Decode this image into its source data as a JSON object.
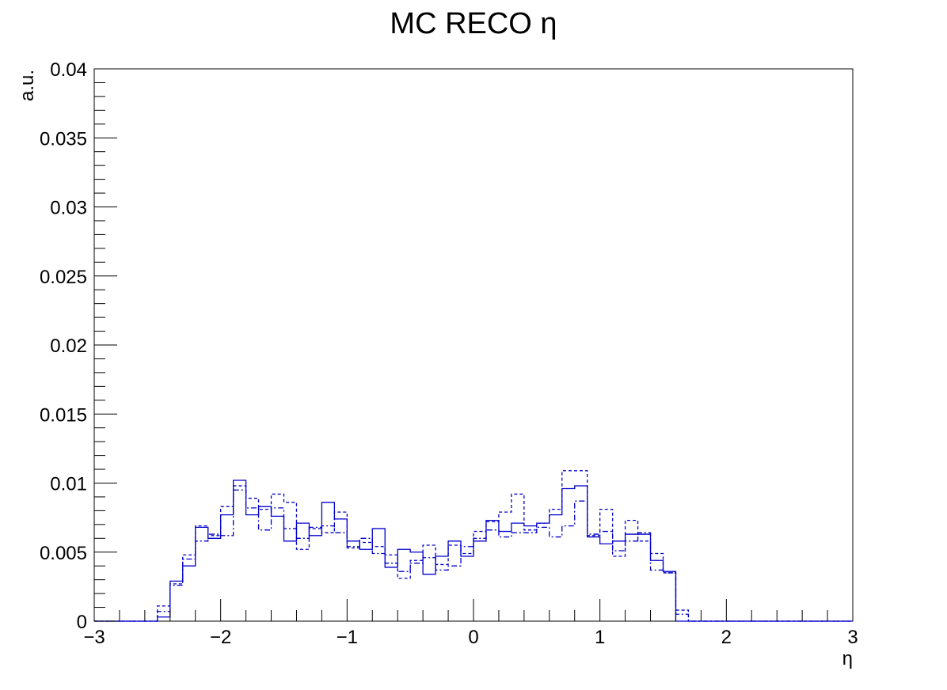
{
  "chart_data": {
    "type": "line",
    "title": "MC RECO η",
    "xlabel": "η",
    "ylabel": "a.u.",
    "xlim": [
      -3,
      3
    ],
    "ylim": [
      0,
      0.04
    ],
    "grid": false,
    "x_ticks": [
      -3,
      -2,
      -1,
      0,
      1,
      2,
      3
    ],
    "x_tick_labels": [
      "−3",
      "−2",
      "−1",
      "0",
      "1",
      "2",
      "3"
    ],
    "y_ticks": [
      0,
      0.005,
      0.01,
      0.015,
      0.02,
      0.025,
      0.03,
      0.035,
      0.04
    ],
    "y_tick_labels": [
      "0",
      "0.005",
      "0.01",
      "0.015",
      "0.02",
      "0.025",
      "0.03",
      "0.035",
      "0.04"
    ],
    "bin_edges": [
      -3.0,
      -2.9,
      -2.8,
      -2.7,
      -2.6,
      -2.5,
      -2.4,
      -2.3,
      -2.2,
      -2.1,
      -2.0,
      -1.9,
      -1.8,
      -1.7,
      -1.6,
      -1.5,
      -1.4,
      -1.3,
      -1.2,
      -1.1,
      -1.0,
      -0.9,
      -0.8,
      -0.7,
      -0.6,
      -0.5,
      -0.4,
      -0.3,
      -0.2,
      -0.1,
      0.0,
      0.1,
      0.2,
      0.3,
      0.4,
      0.5,
      0.6,
      0.7,
      0.8,
      0.9,
      1.0,
      1.1,
      1.2,
      1.3,
      1.4,
      1.5,
      1.6,
      1.7,
      1.8,
      1.9,
      2.0,
      2.1,
      2.2,
      2.3,
      2.4,
      2.5,
      2.6,
      2.7,
      2.8,
      2.9,
      3.0
    ],
    "series": [
      {
        "style": "solid",
        "color": "#0000cc",
        "values": [
          0,
          0,
          0,
          0,
          0,
          0.0003,
          0.0029,
          0.004,
          0.0068,
          0.006,
          0.0077,
          0.0102,
          0.0077,
          0.0083,
          0.0076,
          0.0058,
          0.0071,
          0.0062,
          0.0086,
          0.0074,
          0.0058,
          0.0052,
          0.0067,
          0.0039,
          0.0052,
          0.005,
          0.0034,
          0.0047,
          0.0058,
          0.0047,
          0.0058,
          0.0073,
          0.0065,
          0.0071,
          0.0069,
          0.0071,
          0.0077,
          0.0096,
          0.0098,
          0.0061,
          0.0056,
          0.0058,
          0.0063,
          0.0063,
          0.0044,
          0.0036,
          0,
          0,
          0,
          0,
          0,
          0,
          0,
          0,
          0,
          0,
          0,
          0,
          0,
          0
        ]
      },
      {
        "style": "dashed",
        "color": "#0000cc",
        "values": [
          0,
          0,
          0,
          0,
          0,
          0.0011,
          0.0027,
          0.0048,
          0.0069,
          0.0062,
          0.0083,
          0.0098,
          0.0089,
          0.0081,
          0.0092,
          0.0086,
          0.0052,
          0.0067,
          0.0064,
          0.0079,
          0.0053,
          0.0057,
          0.0054,
          0.0048,
          0.0031,
          0.0044,
          0.0055,
          0.0041,
          0.0055,
          0.0049,
          0.0065,
          0.0072,
          0.0079,
          0.0092,
          0.0066,
          0.0071,
          0.0081,
          0.0109,
          0.0109,
          0.0062,
          0.0081,
          0.0047,
          0.0073,
          0.0058,
          0.0049,
          0.0035,
          0.0008,
          0,
          0,
          0,
          0,
          0,
          0,
          0,
          0,
          0,
          0,
          0,
          0,
          0
        ]
      },
      {
        "style": "dashdot",
        "color": "#0000cc",
        "values": [
          0,
          0,
          0,
          0,
          0,
          0.0007,
          0.0026,
          0.0045,
          0.0058,
          0.0063,
          0.0062,
          0.0095,
          0.0082,
          0.0066,
          0.0082,
          0.0067,
          0.006,
          0.0068,
          0.0069,
          0.0064,
          0.0054,
          0.006,
          0.0049,
          0.0042,
          0.0036,
          0.0042,
          0.0046,
          0.0037,
          0.004,
          0.0054,
          0.006,
          0.0066,
          0.0061,
          0.0064,
          0.0064,
          0.0068,
          0.0061,
          0.0069,
          0.0087,
          0.0063,
          0.0065,
          0.0051,
          0.0058,
          0.0064,
          0.0037,
          0.0035,
          0.0005,
          0,
          0,
          0,
          0,
          0,
          0,
          0,
          0,
          0,
          0,
          0,
          0,
          0
        ]
      }
    ]
  }
}
